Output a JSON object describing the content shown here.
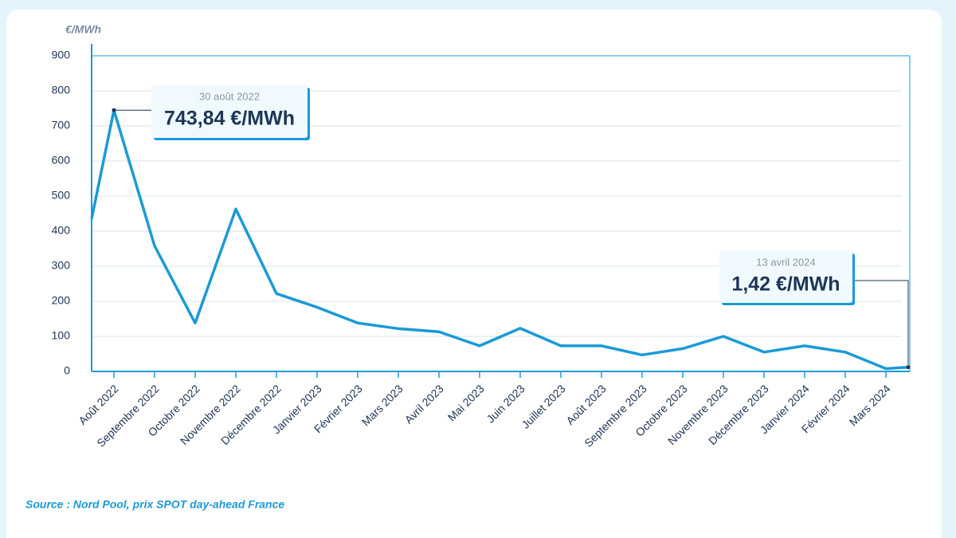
{
  "chart_data": {
    "type": "line",
    "y_label": "€/MWh",
    "categories": [
      null,
      "Août 2022",
      "Septembre 2022",
      "Octobre 2022",
      "Novembre 2022",
      "Décembre 2022",
      "Janvier 2023",
      "Février 2023",
      "Mars 2023",
      "Avril 2023",
      "Mai 2023",
      "Juin 2023",
      "Juillet 2023",
      "Août 2023",
      "Septembre 2023",
      "Octobre 2023",
      "Novembre 2023",
      "Décembre 2023",
      "Janvier 2024",
      "Février 2024",
      "Mars 2024",
      null
    ],
    "values": [
      435,
      745,
      358,
      138,
      463,
      222,
      183,
      138,
      122,
      113,
      73,
      123,
      73,
      73,
      47,
      65,
      100,
      55,
      73,
      55,
      8,
      12
    ],
    "color": "#1a9ad6",
    "ylim": [
      0,
      900
    ],
    "yticks": [
      0,
      100,
      200,
      300,
      400,
      500,
      600,
      700,
      800,
      900
    ],
    "grid": true,
    "annotations": [
      {
        "date": "30 août 2022",
        "label": "743,84 €/MWh"
      },
      {
        "date": "13 avril 2024",
        "label": "1,42 €/MWh"
      }
    ],
    "source": "Source : Nord Pool, prix SPOT day-ahead France"
  }
}
